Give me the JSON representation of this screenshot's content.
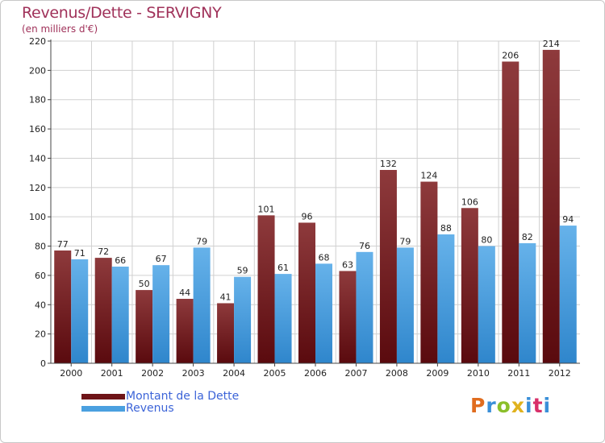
{
  "title": "Revenus/Dette - SERVIGNY",
  "subtitle": "(en milliers d'€)",
  "logo": {
    "text": "Proxiti",
    "colors": [
      "#e06c1e",
      "#3a8fd8",
      "#8bbf2a",
      "#e0b21e",
      "#3a8fd8",
      "#d8306a",
      "#3a8fd8"
    ]
  },
  "colors": {
    "dette": "#7a1a1e",
    "dette_light": "#8e3a3c",
    "revenus": "#4aa0e0",
    "revenus_light": "#66b2ea",
    "axis_text": "#222222",
    "grid": "#d0d0d0"
  },
  "chart_data": {
    "type": "bar",
    "title": "Revenus/Dette - SERVIGNY",
    "subtitle": "(en milliers d'€)",
    "categories": [
      "2000",
      "2001",
      "2002",
      "2003",
      "2004",
      "2005",
      "2006",
      "2007",
      "2008",
      "2009",
      "2010",
      "2011",
      "2012"
    ],
    "series": [
      {
        "name": "Montant de la Dette",
        "values": [
          77,
          72,
          50,
          44,
          41,
          101,
          96,
          63,
          132,
          124,
          106,
          206,
          214
        ]
      },
      {
        "name": "Revenus",
        "values": [
          71,
          66,
          67,
          79,
          59,
          61,
          68,
          76,
          79,
          88,
          80,
          82,
          94
        ]
      }
    ],
    "ylim": [
      0,
      220
    ],
    "yticks": [
      0,
      20,
      40,
      60,
      80,
      100,
      120,
      140,
      160,
      180,
      200,
      220
    ],
    "grid": true,
    "legend_position": "bottom-left"
  }
}
